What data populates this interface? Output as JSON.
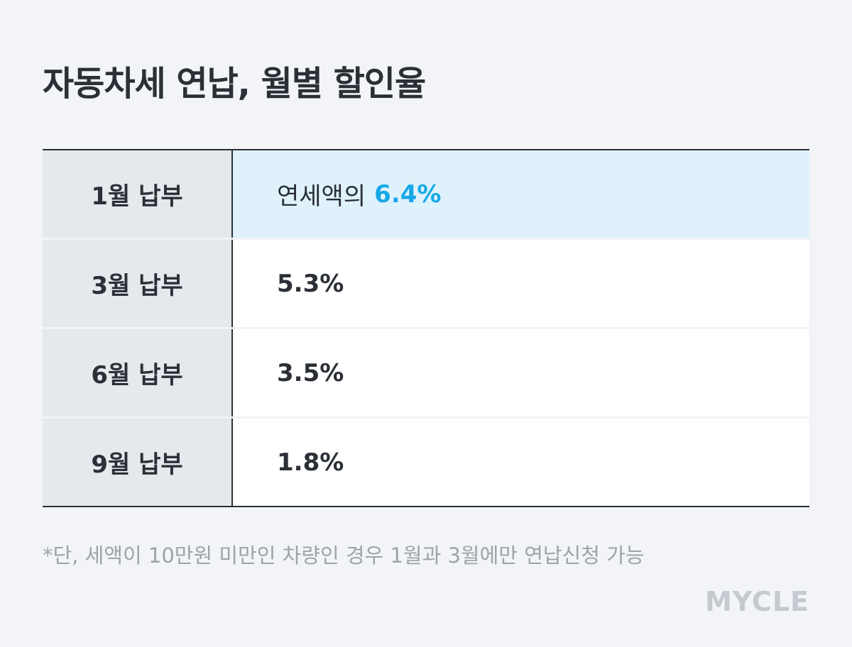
{
  "header": {
    "title": "자동차세 연납, 월별 할인율"
  },
  "table": {
    "rows": [
      {
        "label": "1월 납부",
        "prefix": "연세액의",
        "value": "6.4%"
      },
      {
        "label": "3월 납부",
        "value": "5.3%"
      },
      {
        "label": "6월 납부",
        "value": "3.5%"
      },
      {
        "label": "9월 납부",
        "value": "1.8%"
      }
    ]
  },
  "footnote": "*단, 세액이 10만원 미만인 차량인 경우 1월과 3월에만 연납신청 가능",
  "logo": "MYCLE"
}
